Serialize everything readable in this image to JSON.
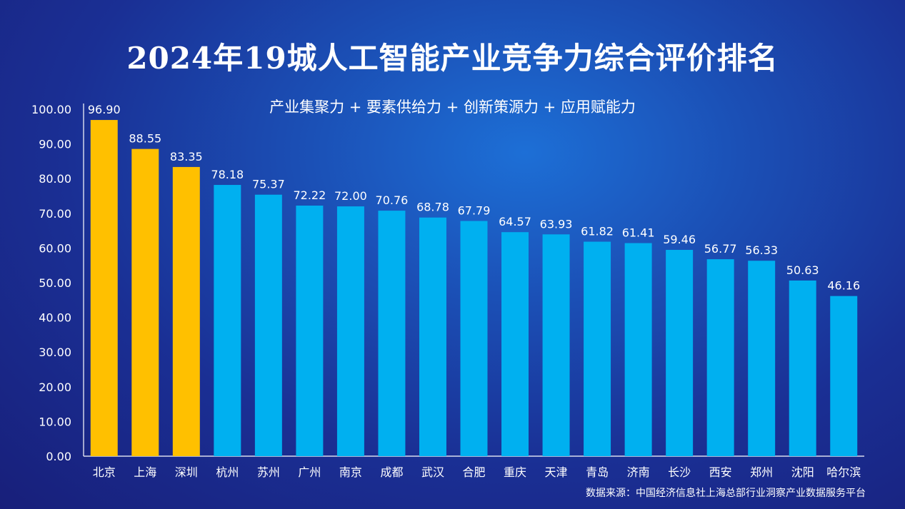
{
  "chart_data": {
    "type": "bar",
    "title": "2024年19城人工智能产业竞争力综合评价排名",
    "subtitle": "产业集聚力 + 要素供给力 + 创新策源力 + 应用赋能力",
    "source": "数据来源：中国经济信息社上海总部行业洞察产业数据服务平台",
    "categories": [
      "北京",
      "上海",
      "深圳",
      "杭州",
      "苏州",
      "广州",
      "南京",
      "成都",
      "武汉",
      "合肥",
      "重庆",
      "天津",
      "青岛",
      "济南",
      "长沙",
      "西安",
      "郑州",
      "沈阳",
      "哈尔滨"
    ],
    "values": [
      96.9,
      88.55,
      83.35,
      78.18,
      75.37,
      72.22,
      72.0,
      70.76,
      68.78,
      67.79,
      64.57,
      63.93,
      61.82,
      61.41,
      59.46,
      56.77,
      56.33,
      50.63,
      46.16
    ],
    "value_labels": [
      "96.90",
      "88.55",
      "83.35",
      "78.18",
      "75.37",
      "72.22",
      "72.00",
      "70.76",
      "68.78",
      "67.79",
      "64.57",
      "63.93",
      "61.82",
      "61.41",
      "59.46",
      "56.77",
      "56.33",
      "50.63",
      "46.16"
    ],
    "yticks": [
      "0.00",
      "10.00",
      "20.00",
      "30.00",
      "40.00",
      "50.00",
      "60.00",
      "70.00",
      "80.00",
      "90.00",
      "100.00"
    ],
    "ylim": [
      0,
      100
    ],
    "xlabel": "",
    "ylabel": "",
    "grid": false,
    "highlight_top_n": 3,
    "colors": {
      "highlight": "#ffc000",
      "normal": "#00b0f0",
      "axis": "#ffffff"
    }
  }
}
